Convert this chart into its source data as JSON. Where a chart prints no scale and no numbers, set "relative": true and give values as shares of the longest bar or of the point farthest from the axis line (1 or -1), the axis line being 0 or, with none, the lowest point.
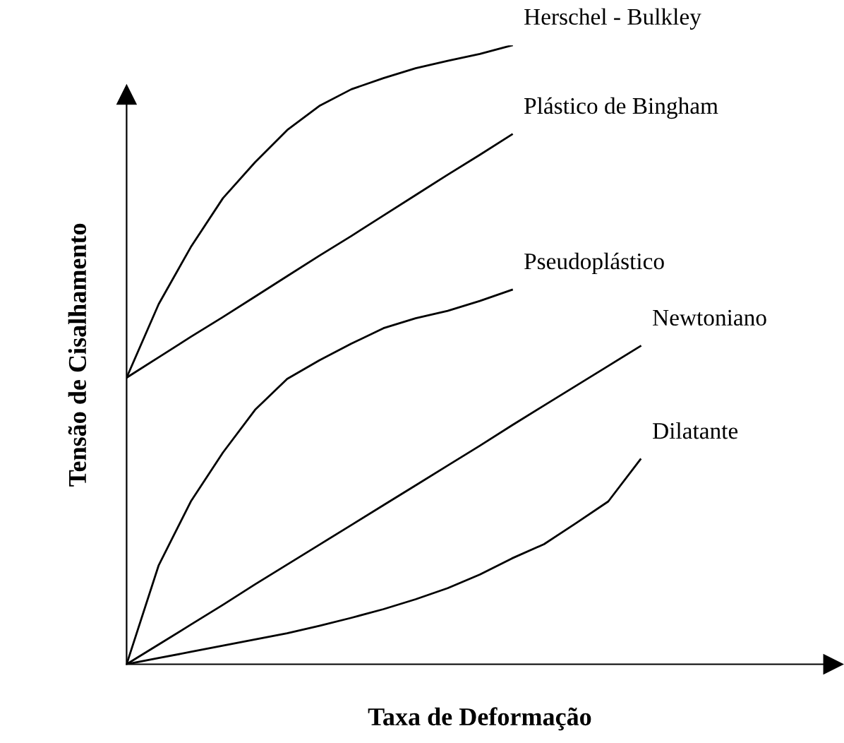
{
  "chart_data": {
    "type": "line",
    "relative": true,
    "xlabel": "Taxa de Deformação",
    "ylabel": "Tensão de Cisalhamento",
    "categories": [
      null,
      null,
      null,
      null,
      null,
      null,
      null,
      null,
      null,
      null,
      null,
      null,
      null,
      null,
      null,
      null,
      null,
      null,
      null,
      null,
      null,
      null,
      null
    ],
    "series": [
      {
        "name": "Herschel - Bulkley",
        "color": "#000000",
        "values": [
          0.463,
          0.582,
          0.674,
          0.753,
          0.811,
          0.863,
          0.902,
          0.929,
          0.947,
          0.963,
          0.975,
          0.986,
          1,
          null,
          null,
          null,
          null,
          null,
          null,
          null,
          null,
          null,
          null
        ]
      },
      {
        "name": "Plástico de Bingham",
        "color": "#000000",
        "values": [
          0.463,
          0.496,
          0.529,
          0.561,
          0.594,
          0.627,
          0.66,
          0.692,
          0.725,
          0.758,
          0.791,
          0.823,
          0.856,
          null,
          null,
          null,
          null,
          null,
          null,
          null,
          null,
          null,
          null
        ]
      },
      {
        "name": "Pseudoplástico",
        "color": "#000000",
        "values": [
          0,
          0.16,
          0.263,
          0.342,
          0.411,
          0.461,
          0.491,
          0.518,
          0.543,
          0.559,
          0.571,
          0.587,
          0.605,
          null,
          null,
          null,
          null,
          null,
          null,
          null,
          null,
          null,
          null
        ]
      },
      {
        "name": "Newtoniano",
        "color": "#000000",
        "values": [
          0,
          0.032,
          0.064,
          0.096,
          0.129,
          0.161,
          0.193,
          0.225,
          0.257,
          0.289,
          0.321,
          0.353,
          0.386,
          0.418,
          0.45,
          0.482,
          0.514,
          null,
          null,
          null,
          null,
          null,
          null
        ]
      },
      {
        "name": "Dilatante",
        "color": "#000000",
        "values": [
          0,
          0.01,
          0.02,
          0.03,
          0.04,
          0.05,
          0.062,
          0.075,
          0.089,
          0.105,
          0.123,
          0.145,
          0.171,
          0.194,
          0.228,
          0.263,
          0.331,
          null,
          null,
          null,
          null,
          null,
          null
        ]
      }
    ],
    "marker": "none",
    "line_style": "solid",
    "grid": false,
    "legend": false,
    "tick_labels": false
  }
}
